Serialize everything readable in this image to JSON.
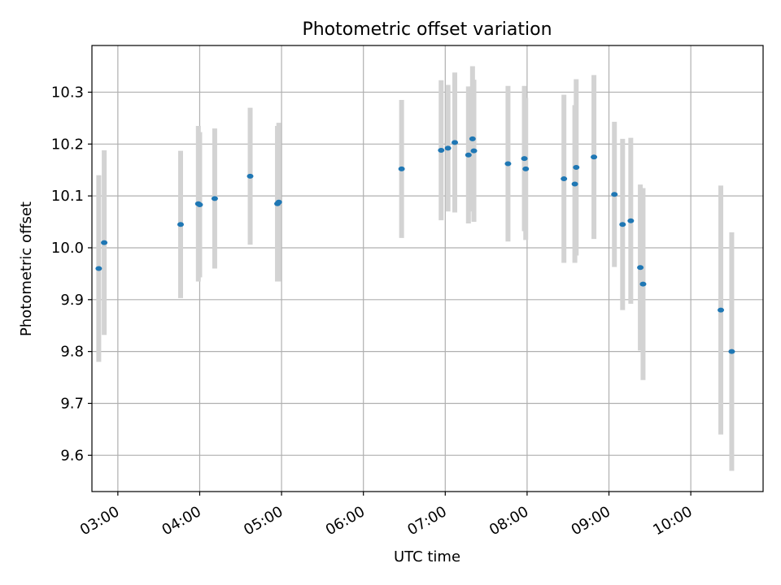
{
  "chart_data": {
    "type": "scatter",
    "title": "Photometric offset variation",
    "xlabel": "UTC time",
    "ylabel": "Photometric offset",
    "grid": true,
    "x_ticks": [
      "03:00",
      "04:00",
      "05:00",
      "06:00",
      "07:00",
      "08:00",
      "09:00",
      "10:00"
    ],
    "y_ticks": [
      "9.6",
      "9.7",
      "9.8",
      "9.9",
      "10.0",
      "10.1",
      "10.2",
      "10.3"
    ],
    "xlim": [
      "02:41",
      "10:53"
    ],
    "ylim": [
      9.53,
      10.39
    ],
    "colors": {
      "points": "#1f77b4",
      "error_bars": "#d3d3d3",
      "grid": "#b0b0b0"
    },
    "points": [
      {
        "x": "02:46",
        "y": 9.96,
        "yerr": 0.18
      },
      {
        "x": "02:50",
        "y": 10.01,
        "yerr": 0.178
      },
      {
        "x": "03:46",
        "y": 10.045,
        "yerr": 0.142
      },
      {
        "x": "03:59",
        "y": 10.085,
        "yerr": 0.15
      },
      {
        "x": "04:00",
        "y": 10.083,
        "yerr": 0.14
      },
      {
        "x": "04:11",
        "y": 10.095,
        "yerr": 0.135
      },
      {
        "x": "04:37",
        "y": 10.138,
        "yerr": 0.132
      },
      {
        "x": "04:57",
        "y": 10.085,
        "yerr": 0.15
      },
      {
        "x": "04:58",
        "y": 10.088,
        "yerr": 0.153
      },
      {
        "x": "06:28",
        "y": 10.152,
        "yerr": 0.133
      },
      {
        "x": "06:57",
        "y": 10.188,
        "yerr": 0.135
      },
      {
        "x": "07:02",
        "y": 10.192,
        "yerr": 0.122
      },
      {
        "x": "07:07",
        "y": 10.203,
        "yerr": 0.135
      },
      {
        "x": "07:17",
        "y": 10.179,
        "yerr": 0.132
      },
      {
        "x": "07:20",
        "y": 10.21,
        "yerr": 0.14
      },
      {
        "x": "07:21",
        "y": 10.187,
        "yerr": 0.137
      },
      {
        "x": "07:46",
        "y": 10.162,
        "yerr": 0.15
      },
      {
        "x": "07:58",
        "y": 10.172,
        "yerr": 0.14
      },
      {
        "x": "07:59",
        "y": 10.152,
        "yerr": 0.137
      },
      {
        "x": "08:27",
        "y": 10.133,
        "yerr": 0.162
      },
      {
        "x": "08:35",
        "y": 10.123,
        "yerr": 0.152
      },
      {
        "x": "08:36",
        "y": 10.155,
        "yerr": 0.17
      },
      {
        "x": "08:49",
        "y": 10.175,
        "yerr": 0.158
      },
      {
        "x": "09:04",
        "y": 10.103,
        "yerr": 0.14
      },
      {
        "x": "09:10",
        "y": 10.045,
        "yerr": 0.165
      },
      {
        "x": "09:16",
        "y": 10.052,
        "yerr": 0.16
      },
      {
        "x": "09:23",
        "y": 9.962,
        "yerr": 0.16
      },
      {
        "x": "09:25",
        "y": 9.93,
        "yerr": 0.185
      },
      {
        "x": "10:22",
        "y": 9.88,
        "yerr": 0.24
      },
      {
        "x": "10:30",
        "y": 9.8,
        "yerr": 0.23
      }
    ]
  }
}
